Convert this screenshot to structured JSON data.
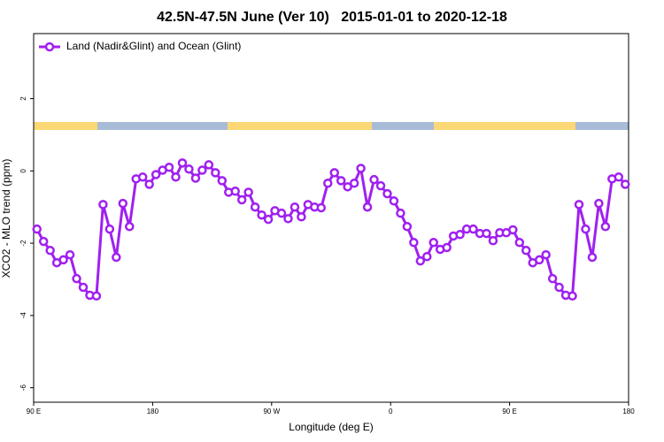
{
  "chart_data": {
    "type": "line",
    "title": "42.5N-47.5N June (Ver 10)   2015-01-01 to 2020-12-18",
    "xlabel": "Longitude (deg E)",
    "ylabel": "XCO2 - MLO trend (ppm)",
    "xlim": [
      90,
      540
    ],
    "ylim": [
      -6.4,
      3.8
    ],
    "xticks": [
      {
        "value": 90,
        "label": "90 E"
      },
      180,
      {
        "value": 270,
        "label": "90 W"
      },
      {
        "value": 360,
        "label": "0"
      },
      {
        "value": 450,
        "label": "90 E"
      },
      {
        "value": 540,
        "label": "180"
      }
    ],
    "yticks": [
      -6,
      -4,
      -2,
      0,
      2
    ],
    "legend": "top-left",
    "x": [
      92.5,
      97.5,
      102.5,
      107.5,
      112.5,
      117.5,
      122.5,
      127.5,
      132.5,
      137.5,
      142.5,
      147.5,
      152.5,
      157.5,
      162.5,
      167.5,
      172.5,
      177.5,
      182.5,
      187.5,
      192.5,
      197.5,
      202.5,
      207.5,
      212.5,
      217.5,
      222.5,
      227.5,
      232.5,
      237.5,
      242.5,
      247.5,
      252.5,
      257.5,
      262.5,
      267.5,
      272.5,
      277.5,
      282.5,
      287.5,
      292.5,
      297.5,
      302.5,
      307.5,
      312.5,
      317.5,
      322.5,
      327.5,
      332.5,
      337.5,
      342.5,
      347.5,
      352.5,
      357.5,
      362.5,
      367.5,
      372.5,
      377.5,
      382.5,
      387.5,
      392.5,
      397.5,
      402.5,
      407.5,
      412.5,
      417.5,
      422.5,
      427.5,
      432.5,
      437.5,
      442.5,
      447.5,
      452.5,
      457.5,
      462.5,
      467.5,
      472.5,
      477.5,
      482.5,
      487.5,
      492.5,
      497.5,
      502.5,
      507.5,
      512.5,
      517.5,
      522.5,
      527.5,
      532.5,
      537.5
    ],
    "series": [
      {
        "name": "Land (Nadir&Glint) and Ocean (Glint)",
        "color": "#a020f0",
        "values": [
          -1.61,
          -1.95,
          -2.2,
          -2.54,
          -2.46,
          -2.32,
          -2.98,
          -3.22,
          -3.44,
          -3.46,
          -0.93,
          -1.61,
          -2.39,
          -0.9,
          -1.54,
          -0.22,
          -0.17,
          -0.37,
          -0.1,
          0.02,
          0.1,
          -0.17,
          0.22,
          0.05,
          -0.2,
          0.02,
          0.17,
          -0.05,
          -0.27,
          -0.59,
          -0.56,
          -0.8,
          -0.59,
          -1.0,
          -1.22,
          -1.34,
          -1.1,
          -1.17,
          -1.32,
          -1.0,
          -1.27,
          -0.93,
          -1.0,
          -1.02,
          -0.34,
          -0.05,
          -0.27,
          -0.44,
          -0.34,
          0.07,
          -1.0,
          -0.24,
          -0.41,
          -0.63,
          -0.83,
          -1.17,
          -1.54,
          -1.98,
          -2.49,
          -2.37,
          -1.98,
          -2.17,
          -2.12,
          -1.8,
          -1.76,
          -1.61,
          -1.61,
          -1.73,
          -1.73,
          -1.93,
          -1.71,
          -1.71,
          -1.63,
          -1.98,
          -2.2,
          -2.54,
          -2.46,
          -2.32,
          -2.98,
          -3.22,
          -3.44,
          -3.46,
          -0.93,
          -1.61,
          -2.39,
          -0.9,
          -1.54,
          -0.22,
          -0.17,
          -0.37
        ]
      }
    ]
  }
}
